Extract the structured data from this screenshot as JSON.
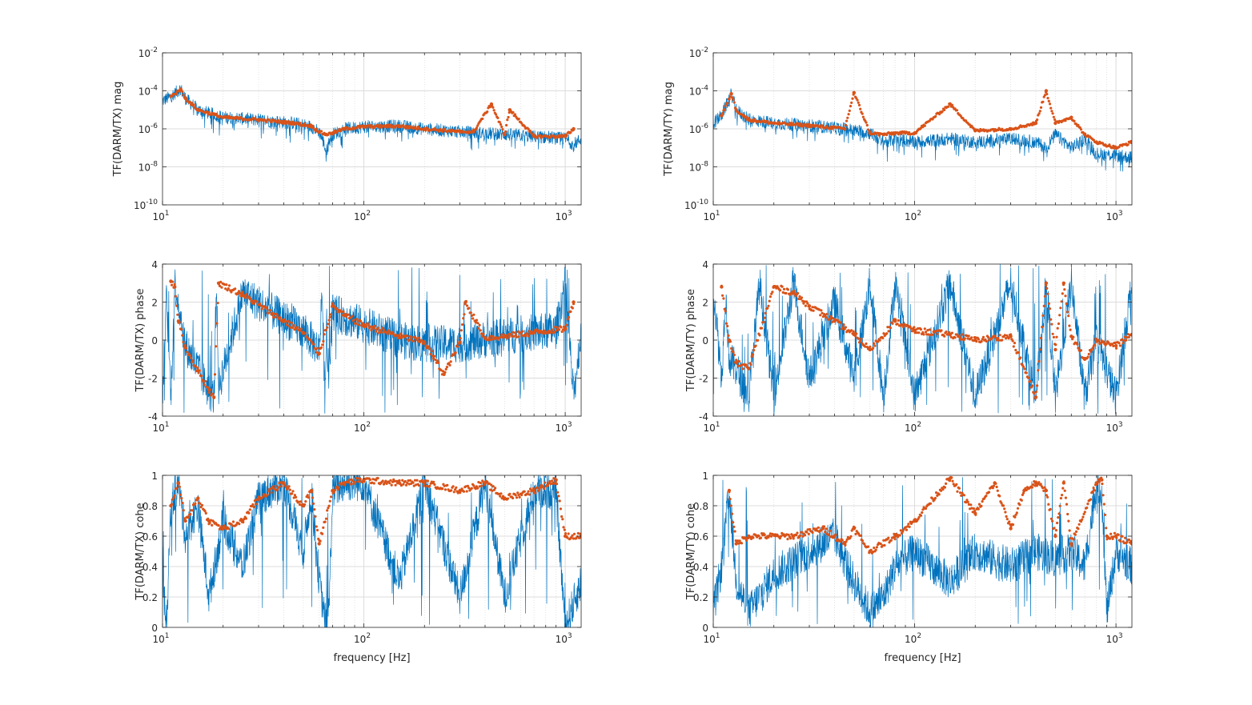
{
  "figure": {
    "colors": {
      "measured": "#0072BD",
      "coherent": "#D95319",
      "axes": "#262626",
      "grid": "#DCDCDC"
    },
    "xlabel": "frequency [Hz]"
  },
  "chart_data": [
    {
      "id": "tx-mag",
      "type": "line",
      "xscale": "log",
      "yscale": "log",
      "xlim": [
        10,
        1200
      ],
      "ylim": [
        1e-10,
        0.01
      ],
      "ylabel": "TF(DARM/TX) mag",
      "xlabel": "",
      "xticks": [
        {
          "base": "10",
          "exp": "1"
        },
        {
          "base": "10",
          "exp": "2"
        },
        {
          "base": "10",
          "exp": "3"
        }
      ],
      "yticks": [
        {
          "base": "10",
          "exp": "-10"
        },
        {
          "base": "10",
          "exp": "-8"
        },
        {
          "base": "10",
          "exp": "-6"
        },
        {
          "base": "10",
          "exp": "-4"
        },
        {
          "base": "10",
          "exp": "-2"
        }
      ],
      "grid": true,
      "series": [
        {
          "color": "#0072BD",
          "style": "line",
          "x": [
            10,
            11,
            12.3,
            13,
            15,
            20,
            30,
            45,
            55,
            60,
            63,
            65,
            67,
            70,
            80,
            100,
            150,
            200,
            300,
            500,
            700,
            1000,
            1100,
            1200
          ],
          "y": [
            3e-05,
            5e-05,
            0.00013,
            4e-05,
            1e-05,
            4e-06,
            3e-06,
            2e-06,
            1.3e-06,
            7e-07,
            2e-07,
            6e-08,
            2e-07,
            5e-07,
            1e-06,
            1.3e-06,
            1.4e-06,
            1e-06,
            7e-07,
            5e-07,
            4e-07,
            3e-07,
            1.5e-07,
            3e-07
          ]
        },
        {
          "color": "#D95319",
          "style": "dots",
          "x": [
            11,
            12.3,
            13,
            15,
            20,
            30,
            45,
            55,
            60,
            65,
            70,
            80,
            100,
            150,
            200,
            300,
            350,
            430,
            500,
            530,
            700,
            1000,
            1100
          ],
          "y": [
            5e-05,
            0.00012,
            4e-05,
            1e-05,
            4e-06,
            3e-06,
            2e-06,
            1.4e-06,
            7e-07,
            5e-07,
            6e-07,
            1e-06,
            1.3e-06,
            1.4e-06,
            1e-06,
            7e-07,
            7e-07,
            2e-05,
            5e-07,
            1e-05,
            4e-07,
            4e-07,
            1e-06
          ]
        }
      ]
    },
    {
      "id": "ty-mag",
      "type": "line",
      "xscale": "log",
      "yscale": "log",
      "xlim": [
        10,
        1200
      ],
      "ylim": [
        1e-10,
        0.01
      ],
      "ylabel": "TF(DARM/TY) mag",
      "xlabel": "",
      "xticks": [
        {
          "base": "10",
          "exp": "1"
        },
        {
          "base": "10",
          "exp": "2"
        },
        {
          "base": "10",
          "exp": "3"
        }
      ],
      "yticks": [
        {
          "base": "10",
          "exp": "-10"
        },
        {
          "base": "10",
          "exp": "-8"
        },
        {
          "base": "10",
          "exp": "-6"
        },
        {
          "base": "10",
          "exp": "-4"
        },
        {
          "base": "10",
          "exp": "-2"
        }
      ],
      "grid": true,
      "series": [
        {
          "color": "#0072BD",
          "style": "line",
          "x": [
            10,
            11,
            12.3,
            13,
            15,
            20,
            30,
            45,
            60,
            70,
            80,
            100,
            150,
            200,
            300,
            400,
            450,
            500,
            600,
            700,
            800,
            1000,
            1200
          ],
          "y": [
            2e-06,
            5e-06,
            7e-05,
            1e-05,
            3e-06,
            2e-06,
            1.5e-06,
            1e-06,
            6e-07,
            2e-07,
            3e-07,
            2e-07,
            3e-07,
            2e-07,
            3e-07,
            2e-07,
            1e-07,
            5e-07,
            1e-07,
            3e-07,
            5e-08,
            4e-08,
            3e-08
          ]
        },
        {
          "color": "#D95319",
          "style": "dots",
          "x": [
            11,
            12.3,
            13,
            15,
            20,
            30,
            45,
            50,
            60,
            70,
            80,
            100,
            150,
            200,
            300,
            400,
            450,
            500,
            600,
            700,
            800,
            1000,
            1200
          ],
          "y": [
            5e-06,
            7e-05,
            1e-05,
            3e-06,
            2e-06,
            1.5e-06,
            1e-06,
            8e-05,
            6e-07,
            5e-07,
            6e-07,
            6e-07,
            2e-05,
            8e-07,
            1e-06,
            2e-06,
            0.0001,
            2e-06,
            4e-06,
            5e-07,
            2e-07,
            1e-07,
            2e-07
          ]
        }
      ]
    },
    {
      "id": "tx-phase",
      "type": "line",
      "xscale": "log",
      "yscale": "linear",
      "xlim": [
        10,
        1200
      ],
      "ylim": [
        -4,
        4
      ],
      "ylabel": "TF(DARM/TX) phase",
      "xlabel": "",
      "xticks": [
        {
          "base": "10",
          "exp": "1"
        },
        {
          "base": "10",
          "exp": "2"
        },
        {
          "base": "10",
          "exp": "3"
        }
      ],
      "yticks": [
        {
          "base": "-4",
          "exp": ""
        },
        {
          "base": "-2",
          "exp": ""
        },
        {
          "base": "0",
          "exp": ""
        },
        {
          "base": "2",
          "exp": ""
        },
        {
          "base": "4",
          "exp": ""
        }
      ],
      "grid": true,
      "series": [
        {
          "color": "#0072BD",
          "style": "line",
          "x": [
            10,
            10.5,
            11,
            11.5,
            12,
            13,
            15,
            17,
            18,
            18.5,
            19,
            25,
            35,
            50,
            60,
            62,
            64,
            65,
            67,
            70,
            80,
            100,
            150,
            200,
            300,
            500,
            700,
            900,
            1000,
            1100,
            1200
          ],
          "y": [
            -3,
            2.5,
            -3,
            3,
            2,
            -0.3,
            -1.5,
            -2.7,
            -3,
            3,
            -2.5,
            2.5,
            1.5,
            0.5,
            -0.5,
            2.7,
            -3,
            0.5,
            -2,
            1.5,
            1.2,
            0.8,
            0,
            -0.2,
            -0.2,
            0.2,
            0.4,
            0.5,
            3,
            -3,
            0.5
          ]
        },
        {
          "color": "#D95319",
          "style": "dots",
          "x": [
            11,
            11.5,
            12,
            13,
            15,
            17,
            18,
            19,
            25,
            35,
            50,
            60,
            70,
            80,
            100,
            150,
            200,
            250,
            300,
            320,
            400,
            500,
            700,
            1000,
            1100
          ],
          "y": [
            3.1,
            2.8,
            1,
            -0.4,
            -1.6,
            -2.6,
            -3,
            3,
            2.4,
            1.4,
            0.4,
            -0.7,
            1.8,
            1.3,
            0.8,
            0.2,
            -0.1,
            -1.8,
            -0.1,
            2,
            0.1,
            0.2,
            0.4,
            0.6,
            2
          ]
        }
      ]
    },
    {
      "id": "ty-phase",
      "type": "line",
      "xscale": "log",
      "yscale": "linear",
      "xlim": [
        10,
        1200
      ],
      "ylim": [
        -4,
        4
      ],
      "ylabel": "TF(DARM/TY) phase",
      "xlabel": "",
      "xticks": [
        {
          "base": "10",
          "exp": "1"
        },
        {
          "base": "10",
          "exp": "2"
        },
        {
          "base": "10",
          "exp": "3"
        }
      ],
      "yticks": [
        {
          "base": "-4",
          "exp": ""
        },
        {
          "base": "-2",
          "exp": ""
        },
        {
          "base": "0",
          "exp": ""
        },
        {
          "base": "2",
          "exp": ""
        },
        {
          "base": "4",
          "exp": ""
        }
      ],
      "grid": true,
      "series": [
        {
          "color": "#0072BD",
          "style": "line",
          "x": [
            10,
            11,
            11.5,
            12,
            13,
            15,
            17,
            20,
            25,
            30,
            40,
            50,
            60,
            70,
            80,
            100,
            150,
            200,
            300,
            400,
            450,
            500,
            600,
            700,
            800,
            1000,
            1200
          ],
          "y": [
            2.8,
            -2,
            2.5,
            -1,
            -1.5,
            -3,
            3,
            -3,
            3,
            -2,
            2,
            -2,
            3,
            -3,
            3,
            -3,
            3,
            -3,
            3,
            -3,
            3,
            -3,
            3,
            -3,
            0,
            -3,
            3
          ]
        },
        {
          "color": "#D95319",
          "style": "dots",
          "x": [
            11,
            12,
            13,
            15,
            20,
            25,
            30,
            40,
            50,
            60,
            80,
            100,
            150,
            200,
            300,
            400,
            450,
            500,
            550,
            600,
            700,
            800,
            1000,
            1200
          ],
          "y": [
            2.8,
            0,
            -1.2,
            -1.5,
            2.8,
            2.5,
            1.8,
            1,
            0.3,
            -0.5,
            1,
            0.5,
            0.3,
            0,
            0.2,
            -3,
            3,
            -0.5,
            3,
            0.2,
            -1,
            0,
            -0.3,
            0.3
          ]
        }
      ]
    },
    {
      "id": "tx-cohe",
      "type": "line",
      "xscale": "log",
      "yscale": "linear",
      "xlim": [
        10,
        1200
      ],
      "ylim": [
        0,
        1
      ],
      "ylabel": "TF(DARM/TX) cohe",
      "xlabel": "frequency [Hz]",
      "xticks": [
        {
          "base": "10",
          "exp": "1"
        },
        {
          "base": "10",
          "exp": "2"
        },
        {
          "base": "10",
          "exp": "3"
        }
      ],
      "yticks": [
        {
          "base": "0",
          "exp": ""
        },
        {
          "base": "0.2",
          "exp": ""
        },
        {
          "base": "0.4",
          "exp": ""
        },
        {
          "base": "0.6",
          "exp": ""
        },
        {
          "base": "0.8",
          "exp": ""
        },
        {
          "base": "1",
          "exp": ""
        }
      ],
      "grid": true,
      "series": [
        {
          "color": "#0072BD",
          "style": "line",
          "x": [
            10,
            10.5,
            11,
            12,
            13,
            15,
            17,
            20,
            25,
            30,
            40,
            50,
            55,
            60,
            65,
            67,
            70,
            80,
            100,
            150,
            200,
            300,
            400,
            500,
            700,
            900,
            1000,
            1200
          ],
          "y": [
            0.3,
            0,
            0.8,
            0.95,
            0.6,
            0.8,
            0.2,
            0.7,
            0.4,
            0.85,
            0.95,
            0.5,
            0.9,
            0.3,
            0,
            0.1,
            0.9,
            0.95,
            0.95,
            0.3,
            0.95,
            0.2,
            0.95,
            0.2,
            0.9,
            0.9,
            0,
            0.3
          ]
        },
        {
          "color": "#D95319",
          "style": "dots",
          "x": [
            11,
            12,
            13,
            15,
            17,
            20,
            25,
            30,
            40,
            50,
            55,
            60,
            70,
            80,
            100,
            150,
            200,
            300,
            400,
            500,
            700,
            900,
            1000,
            1200
          ],
          "y": [
            0.8,
            0.95,
            0.7,
            0.85,
            0.7,
            0.65,
            0.7,
            0.85,
            0.95,
            0.8,
            0.9,
            0.55,
            0.9,
            0.95,
            0.97,
            0.95,
            0.95,
            0.9,
            0.95,
            0.85,
            0.9,
            0.97,
            0.6,
            0.6
          ]
        }
      ]
    },
    {
      "id": "ty-cohe",
      "type": "line",
      "xscale": "log",
      "yscale": "linear",
      "xlim": [
        10,
        1200
      ],
      "ylim": [
        0,
        1
      ],
      "ylabel": "TF(DARM/TY) cohe",
      "xlabel": "frequency [Hz]",
      "xticks": [
        {
          "base": "10",
          "exp": "1"
        },
        {
          "base": "10",
          "exp": "2"
        },
        {
          "base": "10",
          "exp": "3"
        }
      ],
      "yticks": [
        {
          "base": "0",
          "exp": ""
        },
        {
          "base": "0.2",
          "exp": ""
        },
        {
          "base": "0.4",
          "exp": ""
        },
        {
          "base": "0.6",
          "exp": ""
        },
        {
          "base": "0.8",
          "exp": ""
        },
        {
          "base": "1",
          "exp": ""
        }
      ],
      "grid": true,
      "series": [
        {
          "color": "#0072BD",
          "style": "line",
          "x": [
            10,
            11,
            12,
            13,
            15,
            20,
            30,
            40,
            50,
            60,
            70,
            80,
            100,
            150,
            200,
            300,
            400,
            500,
            600,
            700,
            800,
            850,
            900,
            1000,
            1200
          ],
          "y": [
            0.1,
            0.4,
            0.9,
            0.3,
            0.1,
            0.35,
            0.5,
            0.6,
            0.3,
            0.1,
            0.2,
            0.4,
            0.5,
            0.3,
            0.5,
            0.4,
            0.5,
            0.45,
            0.5,
            0.4,
            0.95,
            0.9,
            0.1,
            0.5,
            0.4
          ]
        },
        {
          "color": "#D95319",
          "style": "dots",
          "x": [
            12,
            13,
            15,
            25,
            35,
            40,
            45,
            50,
            60,
            80,
            100,
            150,
            200,
            250,
            300,
            350,
            400,
            450,
            500,
            550,
            600,
            800,
            850,
            900,
            1000,
            1200
          ],
          "y": [
            0.9,
            0.55,
            0.6,
            0.6,
            0.65,
            0.6,
            0.55,
            0.65,
            0.5,
            0.6,
            0.7,
            0.98,
            0.75,
            0.95,
            0.65,
            0.9,
            0.95,
            0.9,
            0.6,
            0.95,
            0.55,
            0.95,
            0.97,
            0.6,
            0.6,
            0.55
          ]
        }
      ]
    }
  ]
}
